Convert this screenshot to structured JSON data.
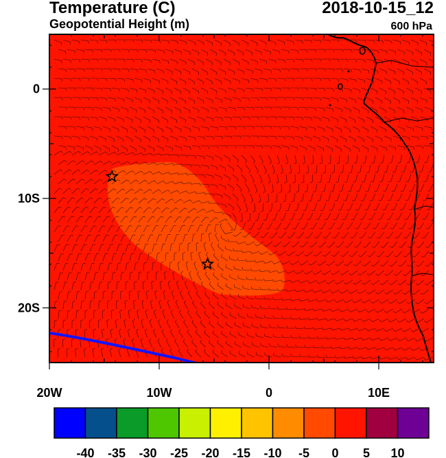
{
  "header": {
    "title": "Temperature (C)",
    "subtitle": "Geopotential Height (m)",
    "datetime": "2018-10-15_12",
    "level": "600 hPa"
  },
  "map": {
    "lon_range": [
      -20,
      15
    ],
    "lat_range": [
      -25,
      5
    ],
    "x_ticks": [
      {
        "value": -20,
        "label": "20W"
      },
      {
        "value": -10,
        "label": "10W"
      },
      {
        "value": 0,
        "label": "0"
      },
      {
        "value": 10,
        "label": "10E"
      }
    ],
    "y_ticks": [
      {
        "value": 0,
        "label": "0"
      },
      {
        "value": -10,
        "label": "10S"
      },
      {
        "value": -20,
        "label": "20S"
      }
    ],
    "background_fill_color": "#ff1400",
    "warm_region_color": "#ff4a00",
    "coastline_color": "#000000",
    "contour_line_color": "#1414ff",
    "markers": [
      {
        "name": "star-marker",
        "lon": -14.3,
        "lat": -8.0
      },
      {
        "name": "star-marker",
        "lon": -5.6,
        "lat": -16.0
      }
    ]
  },
  "colorbar": {
    "colors": [
      "#0000ff",
      "#05508c",
      "#0a9b28",
      "#4ec700",
      "#c8f000",
      "#fff000",
      "#ffc300",
      "#ff8c00",
      "#ff4a00",
      "#ff1400",
      "#a00040",
      "#6e0096"
    ],
    "labels": [
      "-40",
      "-35",
      "-30",
      "-25",
      "-20",
      "-15",
      "-10",
      "-5",
      "0",
      "5",
      "10"
    ]
  }
}
